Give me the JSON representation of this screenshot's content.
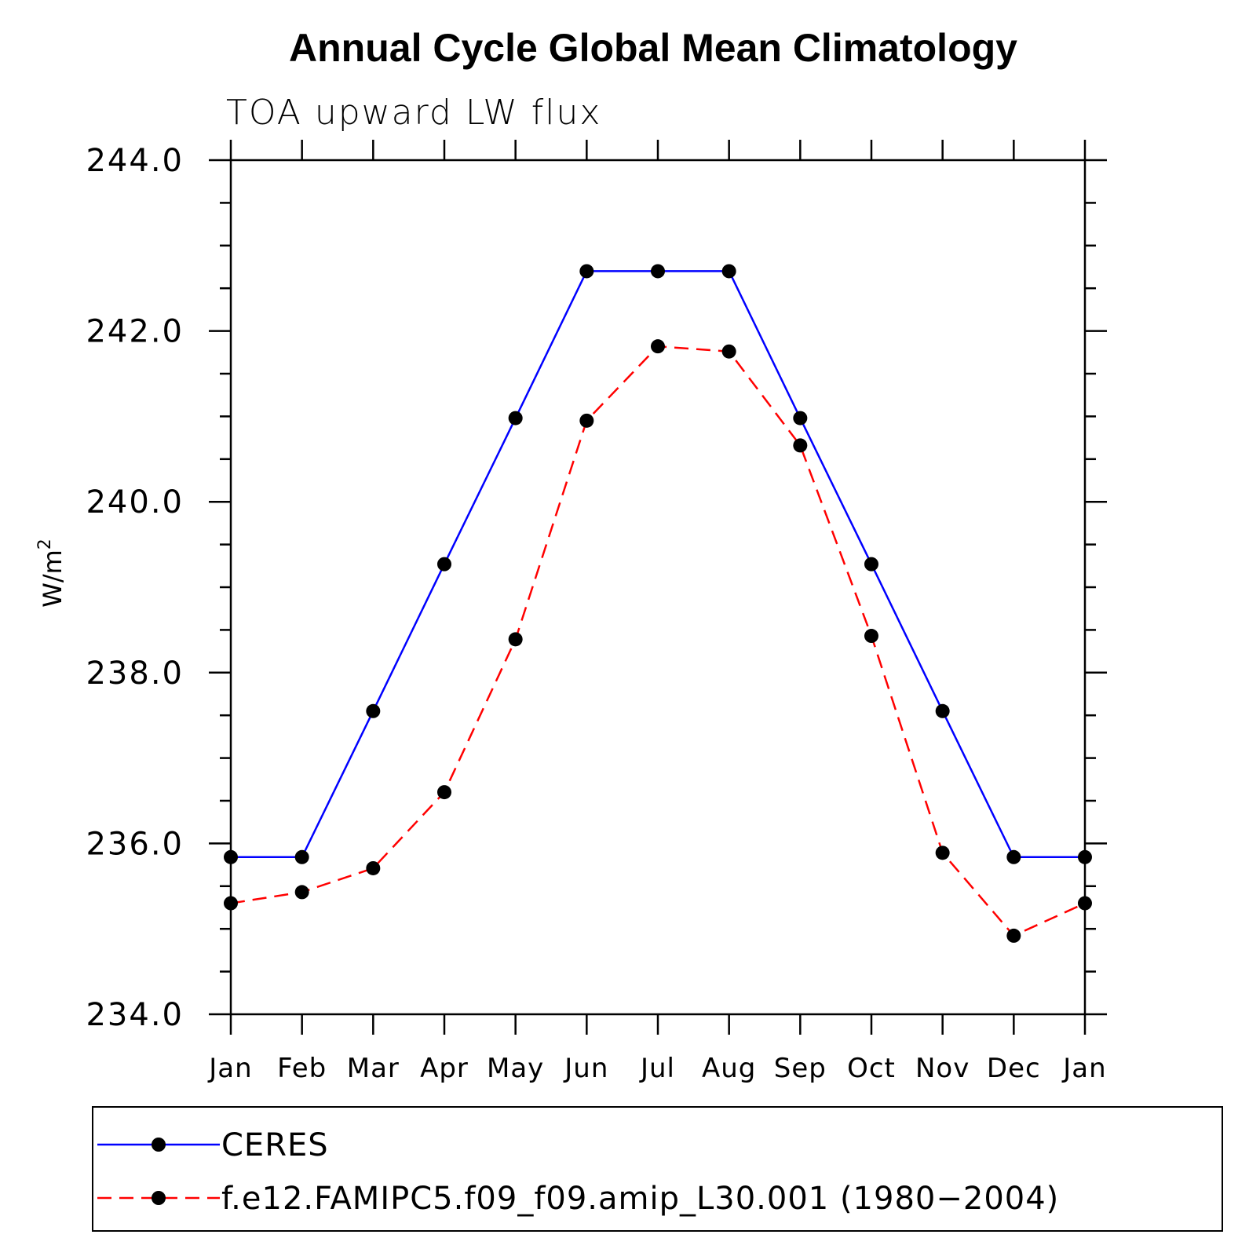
{
  "chart_data": {
    "type": "line",
    "title": "Annual Cycle Global Mean Climatology",
    "subtitle": "TOA upward LW flux",
    "ylabel": "W/m",
    "ylabel_superscript": "2",
    "xlabel": "",
    "ylim": [
      234.0,
      244.0
    ],
    "yticks": [
      234.0,
      236.0,
      238.0,
      240.0,
      242.0,
      244.0
    ],
    "ytick_labels": [
      "234.0",
      "236.0",
      "238.0",
      "240.0",
      "242.0",
      "244.0"
    ],
    "categories": [
      "Jan",
      "Feb",
      "Mar",
      "Apr",
      "May",
      "Jun",
      "Jul",
      "Aug",
      "Sep",
      "Oct",
      "Nov",
      "Dec",
      "Jan"
    ],
    "grid": false,
    "legend_position": "bottom",
    "series": [
      {
        "name": "CERES",
        "color": "#0000ff",
        "line_style": "solid",
        "marker": "filled-circle",
        "values": [
          235.84,
          235.84,
          237.55,
          239.27,
          240.98,
          242.7,
          242.7,
          242.7,
          240.98,
          239.27,
          237.55,
          235.84,
          235.84
        ]
      },
      {
        "name": "f.e12.FAMIPC5.f09_f09.amip_L30.001 (1980−2004)",
        "color": "#ff0000",
        "line_style": "dashed",
        "marker": "filled-circle",
        "values": [
          235.3,
          235.43,
          235.71,
          236.6,
          238.39,
          240.95,
          241.82,
          241.76,
          240.66,
          238.43,
          235.89,
          234.92,
          235.3
        ]
      }
    ]
  }
}
